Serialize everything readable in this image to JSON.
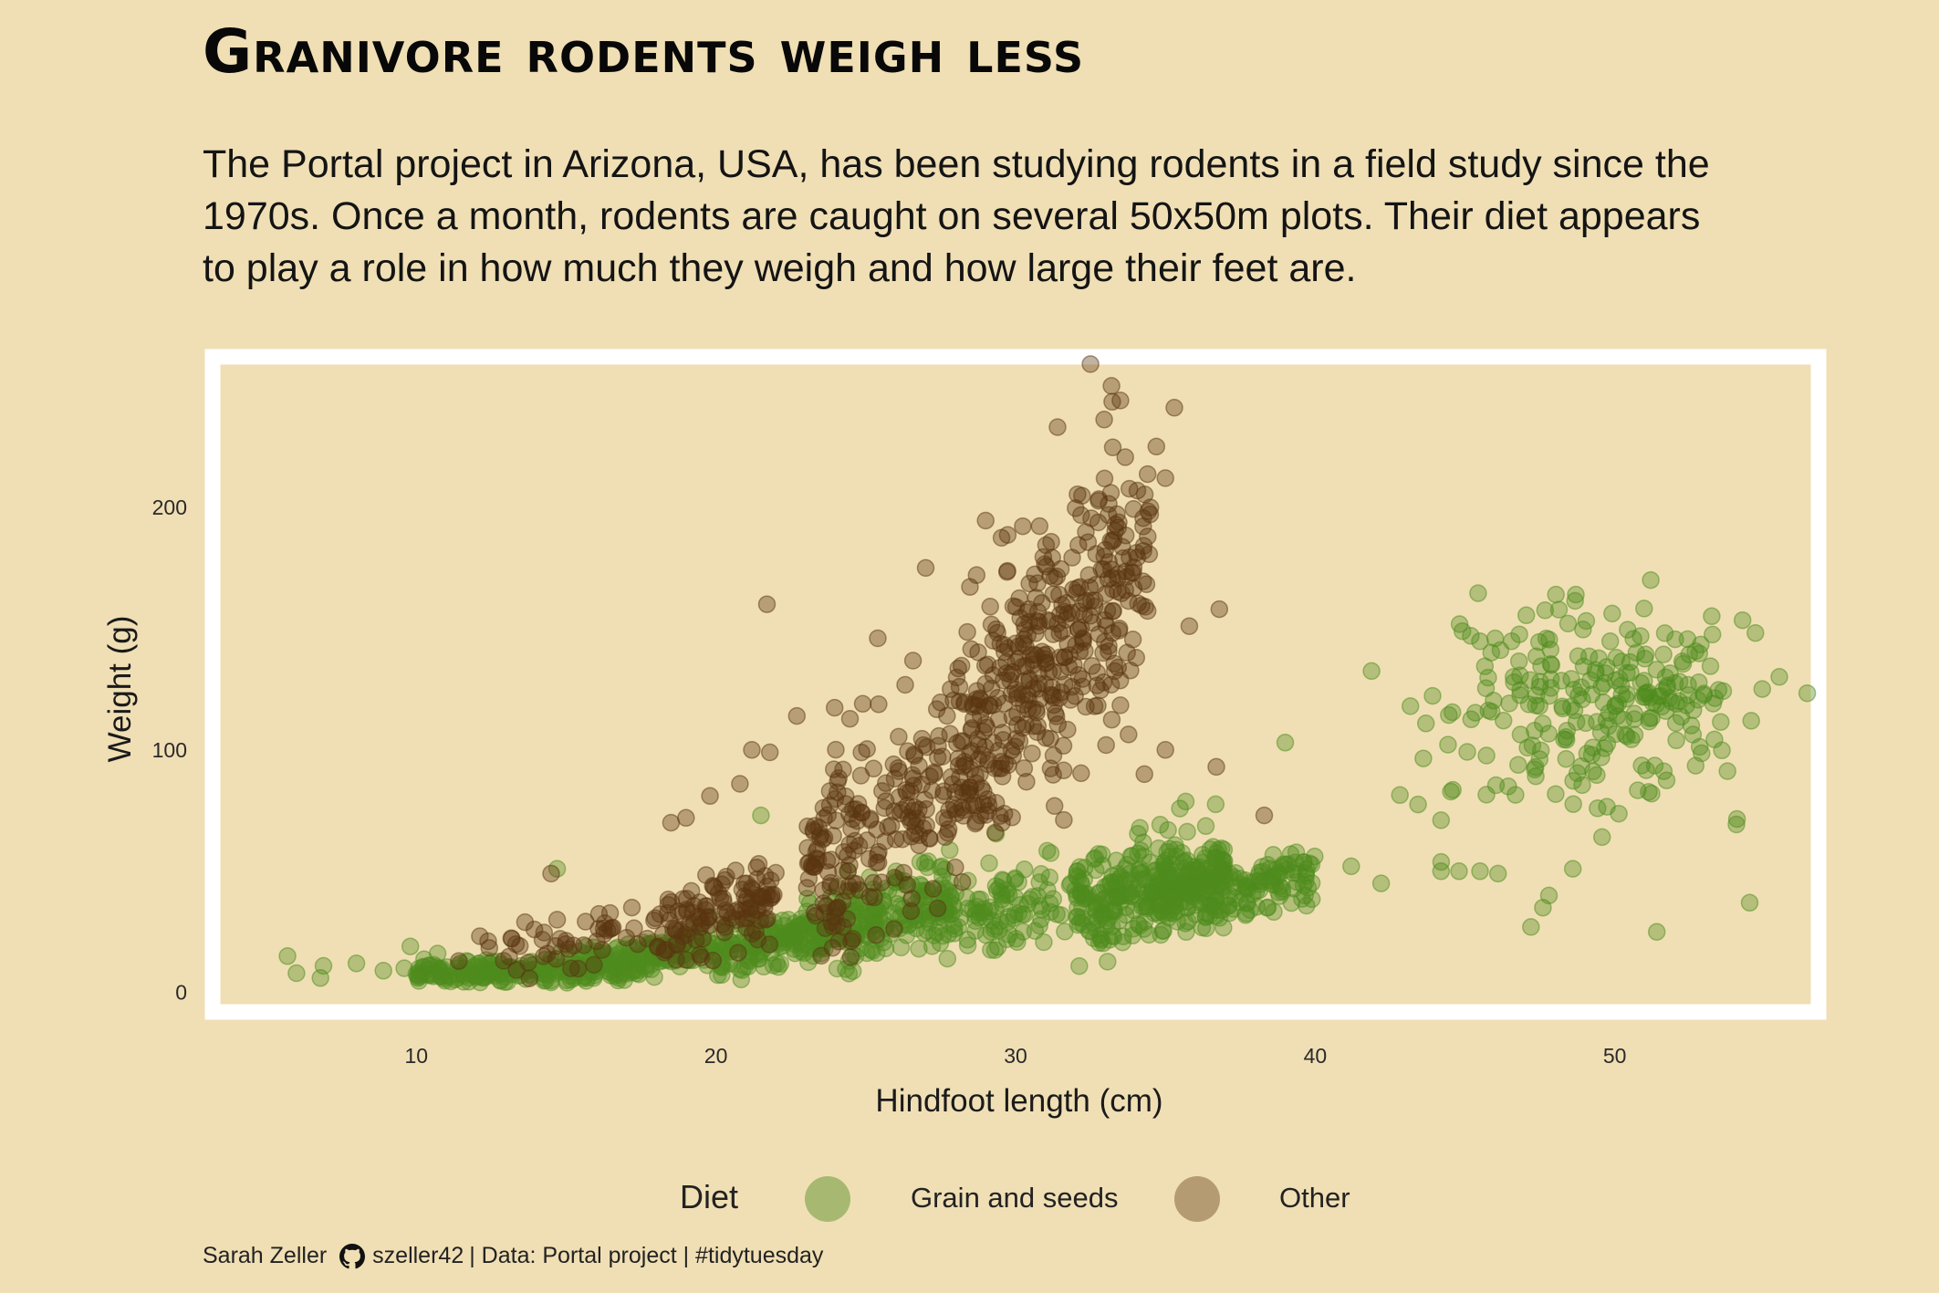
{
  "title": "Granivore rodents weigh less",
  "subtitle": "The Portal project in Arizona, USA, has been studying rodents in a field study since the 1970s. Once a month, rodents are caught on several 50x50m plots. Their diet appears to play a role in how much they weigh and how large their feet are.",
  "caption": {
    "author": "Sarah Zeller",
    "github_icon": "github-icon",
    "handle": "szeller42",
    "source": "| Data: Portal project | #tidytuesday"
  },
  "legend": {
    "title": "Diet",
    "items": [
      {
        "label": "Grain and seeds",
        "color": "#4e8c1e"
      },
      {
        "label": "Other",
        "color": "#5a3510"
      }
    ]
  },
  "colors": {
    "background": "#f0dfb4",
    "panel_border": "#ffffff",
    "grain": "#4e8c1e",
    "other": "#5a3510"
  },
  "chart_data": {
    "type": "scatter",
    "xlabel": "Hindfoot length (cm)",
    "ylabel": "Weight (g)",
    "xlim": [
      3.2,
      56.8
    ],
    "ylim": [
      -8,
      262
    ],
    "x_ticks": [
      10,
      20,
      30,
      40,
      50
    ],
    "y_ticks": [
      0,
      100,
      200
    ],
    "grid": false,
    "legend_position": "bottom",
    "series": [
      {
        "name": "Grain and seeds",
        "color": "#4e8c1e",
        "clusters": [
          {
            "x_range": [
              10,
              15
            ],
            "y_center": [
              8,
              10
            ],
            "y_spread": 3,
            "n": 150
          },
          {
            "x_range": [
              15,
              20
            ],
            "y_center": [
              10,
              17
            ],
            "y_spread": 4,
            "n": 200
          },
          {
            "x_range": [
              20,
              24
            ],
            "y_center": [
              17,
              26
            ],
            "y_spread": 6,
            "n": 170
          },
          {
            "x_range": [
              24,
              28
            ],
            "y_center": [
              26,
              38
            ],
            "y_spread": 8,
            "n": 200
          },
          {
            "x_range": [
              28,
              32
            ],
            "y_center": [
              30,
              40
            ],
            "y_spread": 9,
            "n": 90
          },
          {
            "x_range": [
              32,
              37
            ],
            "y_center": [
              35,
              48
            ],
            "y_spread": 10,
            "n": 360
          },
          {
            "x_range": [
              37,
              40
            ],
            "y_center": [
              42,
              50
            ],
            "y_spread": 6,
            "n": 90
          },
          {
            "x_center": 48.5,
            "x_spread": 3.0,
            "y_center": 118,
            "y_spread": 22,
            "n": 170
          },
          {
            "x_center": 50.8,
            "x_spread": 1.8,
            "y_center": 122,
            "y_spread": 14,
            "n": 80
          }
        ],
        "points": [
          {
            "x": 5.7,
            "y": 15
          },
          {
            "x": 6.0,
            "y": 8
          },
          {
            "x": 6.8,
            "y": 6
          },
          {
            "x": 6.9,
            "y": 11
          },
          {
            "x": 8.0,
            "y": 12
          },
          {
            "x": 8.9,
            "y": 9
          },
          {
            "x": 9.6,
            "y": 10
          },
          {
            "x": 9.8,
            "y": 19
          },
          {
            "x": 14.7,
            "y": 51
          },
          {
            "x": 21.5,
            "y": 73
          },
          {
            "x": 41.2,
            "y": 52
          },
          {
            "x": 42.2,
            "y": 45
          },
          {
            "x": 39.0,
            "y": 103
          },
          {
            "x": 44.2,
            "y": 71
          },
          {
            "x": 54.5,
            "y": 37
          },
          {
            "x": 51.4,
            "y": 25
          },
          {
            "x": 47.2,
            "y": 27
          },
          {
            "x": 51.2,
            "y": 170
          },
          {
            "x": 48.7,
            "y": 164
          },
          {
            "x": 44.2,
            "y": 50
          },
          {
            "x": 44.8,
            "y": 50
          },
          {
            "x": 45.5,
            "y": 50
          },
          {
            "x": 46.1,
            "y": 49
          },
          {
            "x": 47.8,
            "y": 40
          },
          {
            "x": 47.6,
            "y": 35
          },
          {
            "x": 48.6,
            "y": 51
          }
        ]
      },
      {
        "name": "Other",
        "color": "#5a3510",
        "clusters": [
          {
            "x_range": [
              11,
              18
            ],
            "y_center": [
              14,
              28
            ],
            "y_spread": 5,
            "n": 50
          },
          {
            "x_range": [
              18,
              22
            ],
            "y_center": [
              28,
              40
            ],
            "y_spread": 8,
            "n": 120
          },
          {
            "x_range": [
              23,
              28
            ],
            "y_center": [
              50,
              95
            ],
            "y_spread": 22,
            "n": 200
          },
          {
            "x_range": [
              28,
              31
            ],
            "y_center": [
              95,
              145
            ],
            "y_spread": 25,
            "n": 200
          },
          {
            "x_range": [
              31,
              34.5
            ],
            "y_center": [
              140,
              180
            ],
            "y_spread": 28,
            "n": 200
          }
        ],
        "points": [
          {
            "x": 14.5,
            "y": 49
          },
          {
            "x": 14.7,
            "y": 30
          },
          {
            "x": 18.5,
            "y": 70
          },
          {
            "x": 19.0,
            "y": 72
          },
          {
            "x": 19.8,
            "y": 81
          },
          {
            "x": 21.7,
            "y": 160
          },
          {
            "x": 20.8,
            "y": 86
          },
          {
            "x": 21.2,
            "y": 100
          },
          {
            "x": 21.8,
            "y": 99
          },
          {
            "x": 22.7,
            "y": 114
          },
          {
            "x": 25.4,
            "y": 146
          },
          {
            "x": 27.0,
            "y": 175
          },
          {
            "x": 32.5,
            "y": 259
          },
          {
            "x": 33.2,
            "y": 250
          },
          {
            "x": 33.5,
            "y": 244
          },
          {
            "x": 35.3,
            "y": 241
          },
          {
            "x": 31.4,
            "y": 233
          },
          {
            "x": 34.7,
            "y": 225
          },
          {
            "x": 35.0,
            "y": 212
          },
          {
            "x": 36.8,
            "y": 158
          },
          {
            "x": 35.8,
            "y": 151
          },
          {
            "x": 36.7,
            "y": 93
          },
          {
            "x": 38.3,
            "y": 73
          },
          {
            "x": 35.0,
            "y": 100
          },
          {
            "x": 34.3,
            "y": 90
          },
          {
            "x": 24.9,
            "y": 119
          },
          {
            "x": 23.8,
            "y": 83
          },
          {
            "x": 28.7,
            "y": 172
          }
        ]
      }
    ]
  }
}
